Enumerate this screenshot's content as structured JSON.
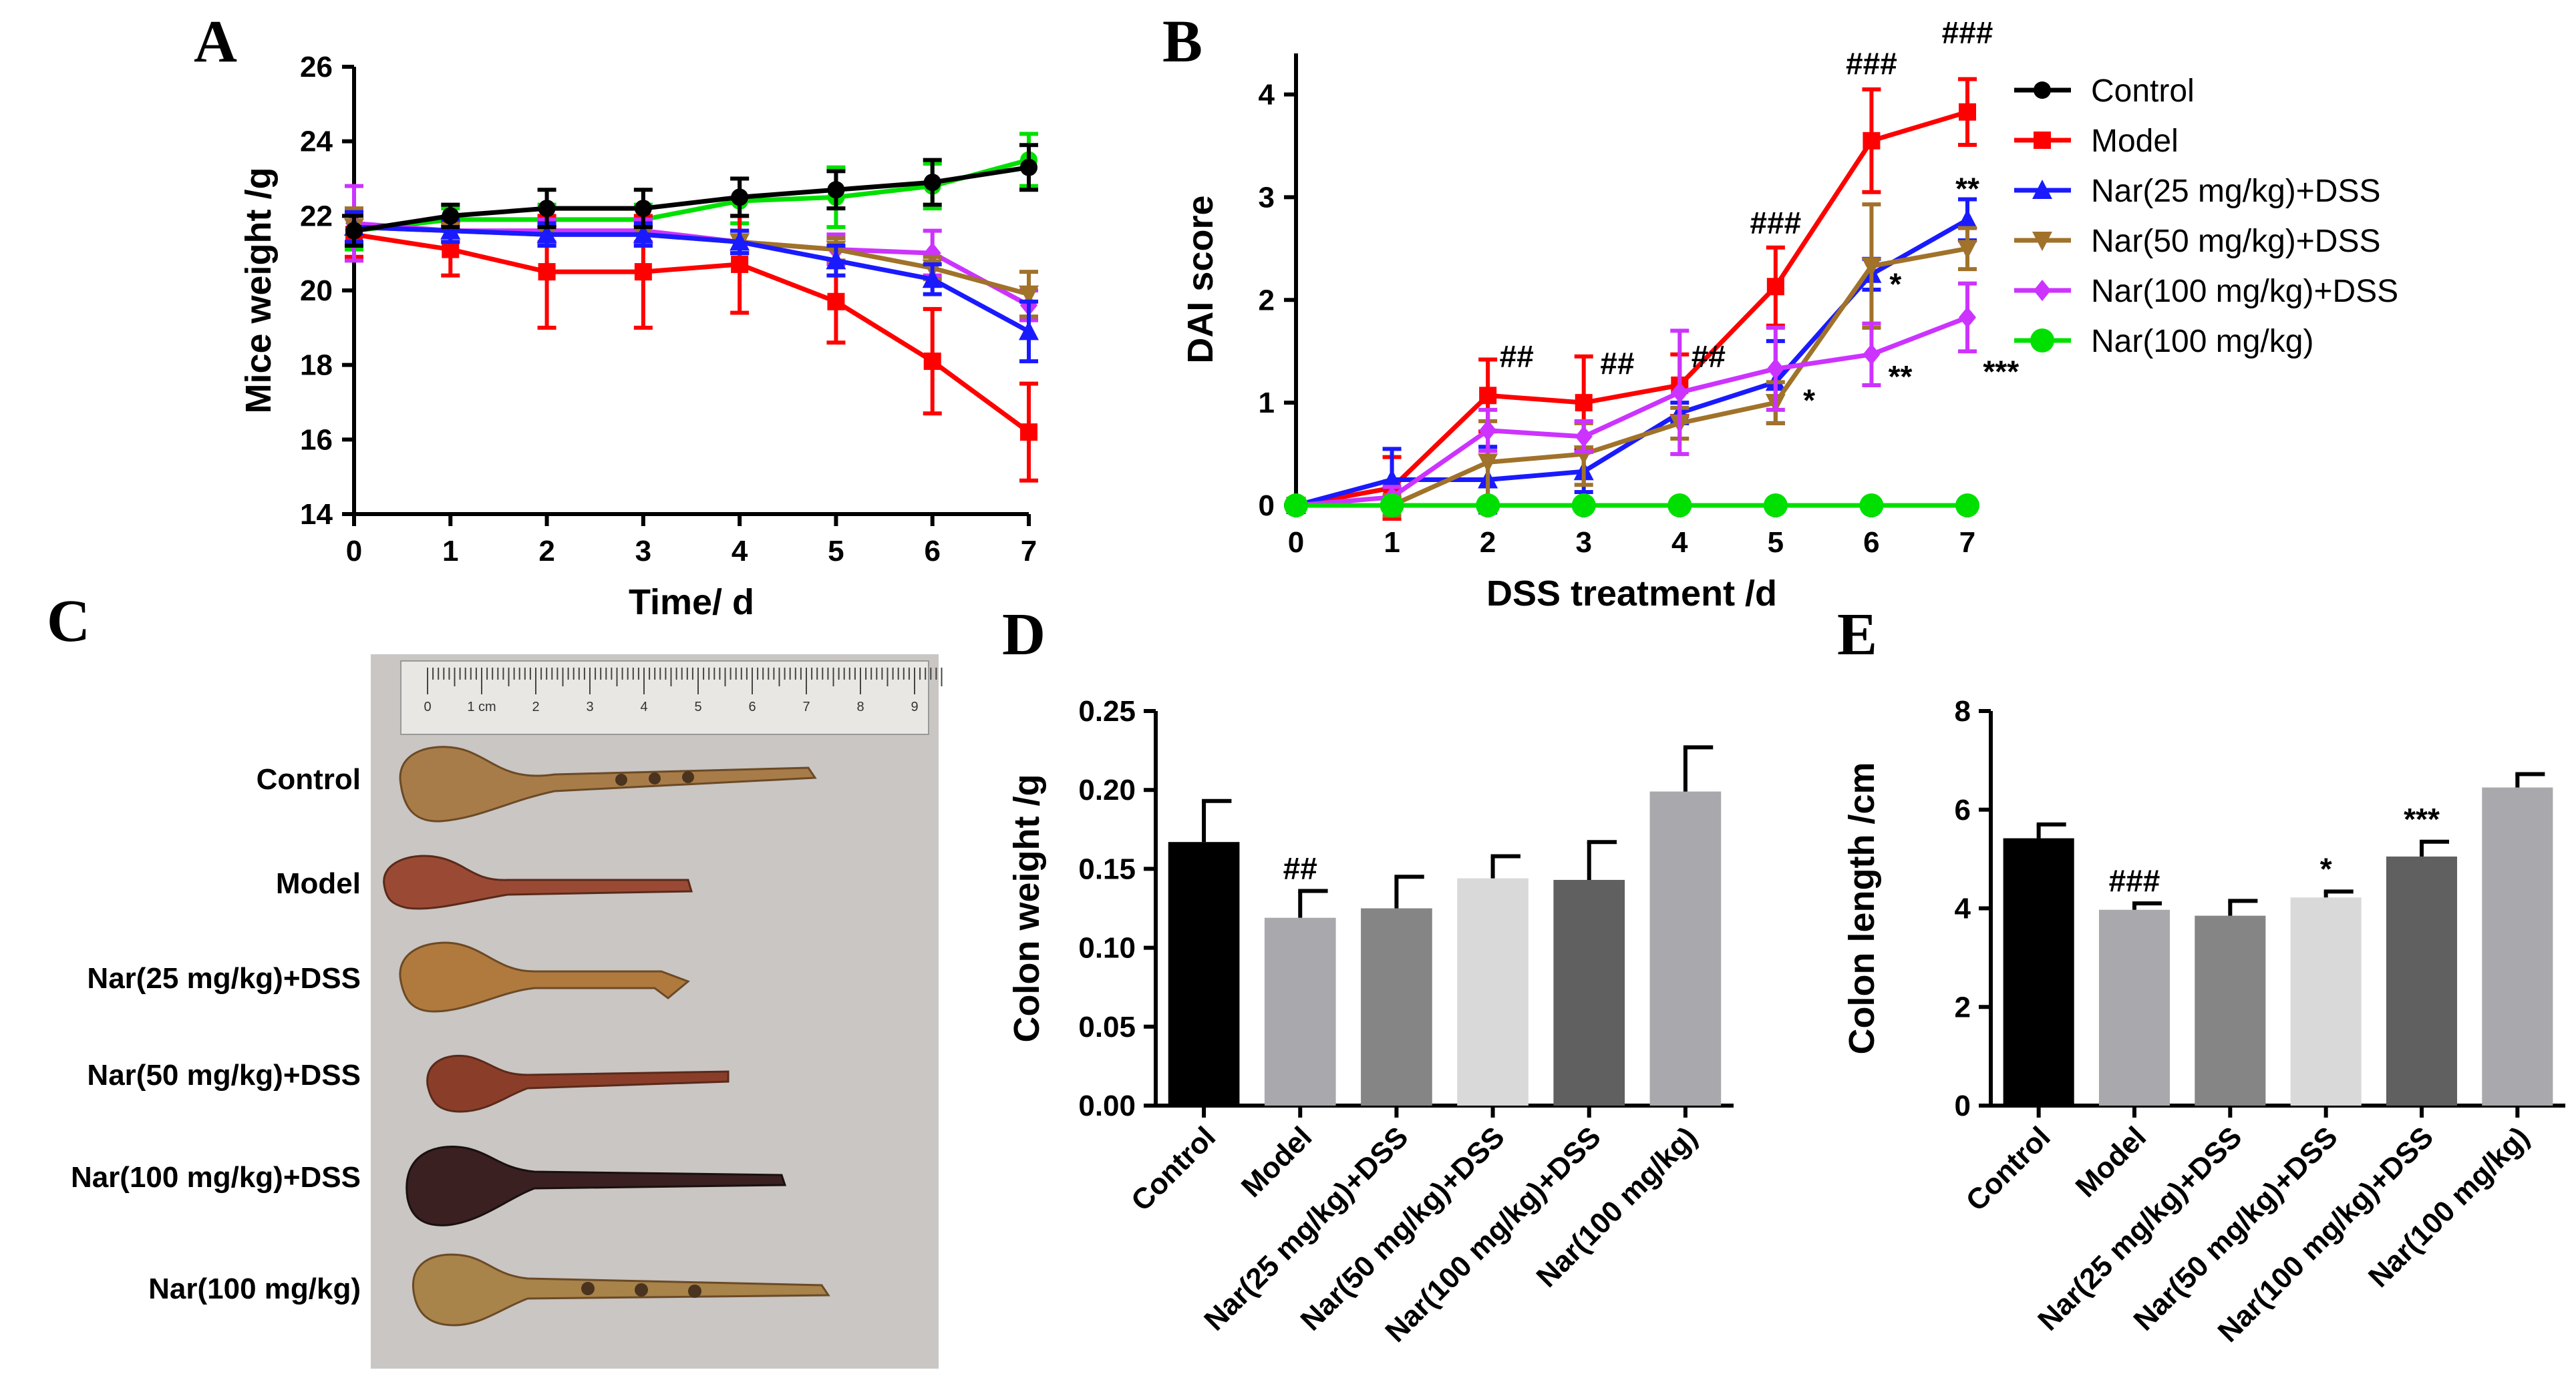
{
  "panel_letters": {
    "a": "A",
    "b": "B",
    "c": "C",
    "d": "D",
    "e": "E"
  },
  "colors": {
    "control": "#000000",
    "model": "#ff0000",
    "nar25": "#1a1aff",
    "nar50": "#a0722a",
    "nar100dss": "#cc33ff",
    "nar100": "#00e000",
    "bar_control": "#000000",
    "bar_model": "#a8a8ad",
    "bar_nar25": "#858585",
    "bar_nar50": "#d9d9d9",
    "bar_nar100dss": "#606060",
    "bar_nar100": "#a8a8ad"
  },
  "photo": {
    "labels": [
      "Control",
      "Model",
      "Nar(25 mg/kg)+DSS",
      "Nar(50 mg/kg)+DSS",
      "Nar(100 mg/kg)+DSS",
      "Nar(100 mg/kg)"
    ],
    "ruler_marks": [
      "0",
      "1 cm",
      "2",
      "3",
      "4",
      "5",
      "6",
      "7",
      "8",
      "9"
    ]
  },
  "chart_data": [
    {
      "panel": "A",
      "type": "line",
      "xlabel": "Time/ d",
      "ylabel": "Mice weight /g",
      "xlim": [
        0,
        7
      ],
      "ylim": [
        14,
        26
      ],
      "xticks": [
        "0",
        "1",
        "2",
        "3",
        "4",
        "5",
        "6",
        "7"
      ],
      "yticks": [
        "14",
        "16",
        "18",
        "20",
        "22",
        "24",
        "26"
      ],
      "x": [
        0,
        1,
        2,
        3,
        4,
        5,
        6,
        7
      ],
      "series": [
        {
          "name": "Nar(100 mg/kg)",
          "key": "nar100",
          "marker": "circle",
          "values": [
            21.6,
            21.9,
            21.9,
            21.9,
            22.4,
            22.5,
            22.8,
            23.5
          ],
          "errors": [
            0.5,
            0.3,
            0.4,
            0.4,
            0.6,
            0.8,
            0.6,
            0.7
          ]
        },
        {
          "name": "Model",
          "key": "model",
          "marker": "square",
          "values": [
            21.5,
            21.1,
            20.5,
            20.5,
            20.7,
            19.7,
            18.1,
            16.2
          ],
          "errors": [
            0.6,
            0.7,
            1.5,
            1.5,
            1.3,
            1.1,
            1.4,
            1.3
          ]
        },
        {
          "name": "Nar(100 mg/kg)+DSS",
          "key": "nar100dss",
          "marker": "diamond",
          "values": [
            21.8,
            21.6,
            21.6,
            21.6,
            21.3,
            21.1,
            21.0,
            19.6
          ],
          "errors": [
            1.0,
            0.3,
            0.3,
            0.3,
            0.3,
            0.4,
            0.6,
            0.4
          ]
        },
        {
          "name": "Nar(50 mg/kg)+DSS",
          "key": "nar50",
          "marker": "triangle-down",
          "values": [
            21.7,
            21.6,
            21.5,
            21.5,
            21.3,
            21.1,
            20.6,
            19.9
          ],
          "errors": [
            0.5,
            0.3,
            0.3,
            0.3,
            0.3,
            0.3,
            0.3,
            0.6
          ]
        },
        {
          "name": "Nar(25 mg/kg)+DSS",
          "key": "nar25",
          "marker": "triangle-up",
          "values": [
            21.7,
            21.6,
            21.5,
            21.5,
            21.3,
            20.8,
            20.3,
            18.9
          ],
          "errors": [
            0.4,
            0.3,
            0.3,
            0.3,
            0.3,
            0.4,
            0.4,
            0.8
          ]
        },
        {
          "name": "Control",
          "key": "control",
          "marker": "circle",
          "values": [
            21.6,
            22.0,
            22.2,
            22.2,
            22.5,
            22.7,
            22.9,
            23.3
          ],
          "errors": [
            0.4,
            0.3,
            0.5,
            0.5,
            0.5,
            0.5,
            0.6,
            0.6
          ]
        }
      ]
    },
    {
      "panel": "B",
      "type": "line",
      "xlabel": "DSS treatment /d",
      "ylabel": "DAI score",
      "xlim": [
        0,
        7
      ],
      "ylim": [
        0,
        4.4
      ],
      "xticks": [
        "0",
        "1",
        "2",
        "3",
        "4",
        "5",
        "6",
        "7"
      ],
      "yticks": [
        "0",
        "1",
        "2",
        "3",
        "4"
      ],
      "x": [
        0,
        1,
        2,
        3,
        4,
        5,
        6,
        7
      ],
      "legend_position": "right",
      "series": [
        {
          "name": "Control",
          "key": "control",
          "marker": "circle",
          "values": [
            0,
            0,
            0,
            0,
            0,
            0,
            0,
            0
          ],
          "errors": [
            0,
            0,
            0,
            0,
            0,
            0,
            0,
            0
          ]
        },
        {
          "name": "Model",
          "key": "model",
          "marker": "square",
          "values": [
            0,
            0.17,
            1.07,
            1.0,
            1.17,
            2.13,
            3.55,
            3.83
          ],
          "errors": [
            0,
            0.3,
            0.35,
            0.45,
            0.3,
            0.38,
            0.5,
            0.32
          ]
        },
        {
          "name": "Nar(25 mg/kg)+DSS",
          "key": "nar25",
          "marker": "triangle-up",
          "values": [
            0,
            0.25,
            0.25,
            0.33,
            0.9,
            1.2,
            2.25,
            2.78
          ],
          "errors": [
            0,
            0.3,
            0.32,
            0.2,
            0.1,
            0.4,
            0.15,
            0.2
          ]
        },
        {
          "name": "Nar(50 mg/kg)+DSS",
          "key": "nar50",
          "marker": "triangle-down",
          "values": [
            0,
            0.0,
            0.42,
            0.5,
            0.8,
            1.0,
            2.33,
            2.5
          ],
          "errors": [
            0,
            0.1,
            0.4,
            0.3,
            0.15,
            0.2,
            0.6,
            0.2
          ]
        },
        {
          "name": "Nar(100 mg/kg)+DSS",
          "key": "nar100dss",
          "marker": "diamond",
          "values": [
            0,
            0.08,
            0.73,
            0.67,
            1.1,
            1.33,
            1.47,
            1.83
          ],
          "errors": [
            0,
            0.1,
            0.2,
            0.15,
            0.6,
            0.4,
            0.3,
            0.33
          ]
        },
        {
          "name": "Nar(100 mg/kg)",
          "key": "nar100",
          "marker": "circle-big",
          "values": [
            0,
            0,
            0,
            0,
            0,
            0,
            0,
            0
          ],
          "errors": [
            0,
            0,
            0,
            0,
            0,
            0,
            0,
            0
          ]
        }
      ],
      "annotations": [
        {
          "text": "##",
          "x": 2.3,
          "y": 1.35
        },
        {
          "text": "##",
          "x": 3.35,
          "y": 1.28
        },
        {
          "text": "##",
          "x": 4.3,
          "y": 1.35
        },
        {
          "text": "###",
          "x": 5.0,
          "y": 2.65
        },
        {
          "text": "###",
          "x": 6.0,
          "y": 4.2
        },
        {
          "text": "###",
          "x": 7.0,
          "y": 4.5
        },
        {
          "text": "**",
          "x": 7.0,
          "y": 2.98
        },
        {
          "text": "*",
          "x": 6.25,
          "y": 2.05
        },
        {
          "text": "*",
          "x": 5.35,
          "y": 0.92
        },
        {
          "text": "**",
          "x": 6.3,
          "y": 1.15
        },
        {
          "text": "***",
          "x": 7.35,
          "y": 1.2
        }
      ]
    },
    {
      "panel": "D",
      "type": "bar",
      "ylabel": "Colon weight /g",
      "ylim": [
        0,
        0.25
      ],
      "yticks": [
        "0.00",
        "0.05",
        "0.10",
        "0.15",
        "0.20",
        "0.25"
      ],
      "categories": [
        "Control",
        "Model",
        "Nar(25 mg/kg)+DSS",
        "Nar(50 mg/kg)+DSS",
        "Nar(100 mg/kg)+DSS",
        "Nar(100 mg/kg)"
      ],
      "values": [
        0.167,
        0.119,
        0.125,
        0.144,
        0.143,
        0.199
      ],
      "errors": [
        0.026,
        0.017,
        0.02,
        0.014,
        0.024,
        0.028
      ],
      "annotations": [
        {
          "category": 1,
          "text": "##"
        },
        {
          "category": 2,
          "text": ""
        },
        {
          "category": 3,
          "text": ""
        },
        {
          "category": 4,
          "text": ""
        }
      ]
    },
    {
      "panel": "E",
      "type": "bar",
      "ylabel": "Colon length /cm",
      "ylim": [
        0,
        8
      ],
      "yticks": [
        "0",
        "2",
        "4",
        "6",
        "8"
      ],
      "categories": [
        "Control",
        "Model",
        "Nar(25 mg/kg)+DSS",
        "Nar(50 mg/kg)+DSS",
        "Nar(100 mg/kg)+DSS",
        "Nar(100 mg/kg)"
      ],
      "values": [
        5.42,
        3.97,
        3.85,
        4.22,
        5.05,
        6.45
      ],
      "errors": [
        0.28,
        0.13,
        0.3,
        0.12,
        0.3,
        0.27
      ],
      "annotations": [
        {
          "category": 1,
          "text": "###"
        },
        {
          "category": 3,
          "text": "*"
        },
        {
          "category": 4,
          "text": "***"
        }
      ]
    }
  ]
}
